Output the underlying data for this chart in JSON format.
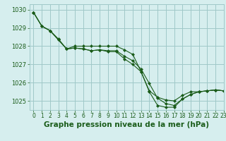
{
  "title": "Graphe pression niveau de la mer (hPa)",
  "bg_color": "#d6eeee",
  "grid_color": "#a0c8c8",
  "line_color": "#1a5c1a",
  "xlim": [
    -0.5,
    23
  ],
  "ylim": [
    1024.5,
    1030.3
  ],
  "yticks": [
    1025,
    1026,
    1027,
    1028,
    1029,
    1030
  ],
  "xticks": [
    0,
    1,
    2,
    3,
    4,
    5,
    6,
    7,
    8,
    9,
    10,
    11,
    12,
    13,
    14,
    15,
    16,
    17,
    18,
    19,
    20,
    21,
    22,
    23
  ],
  "series": [
    [
      1029.85,
      1029.1,
      1028.85,
      1028.4,
      1027.85,
      1027.9,
      1027.85,
      1027.75,
      1027.8,
      1027.75,
      1027.75,
      1027.45,
      1027.2,
      1026.75,
      1025.95,
      1025.15,
      1024.85,
      1024.75,
      1025.1,
      1025.35,
      1025.5,
      1025.55,
      1025.6,
      1025.55
    ],
    [
      1029.85,
      1029.1,
      1028.85,
      1028.35,
      1027.85,
      1028.0,
      1028.0,
      1028.0,
      1028.0,
      1028.0,
      1028.0,
      1027.8,
      1027.55,
      1026.6,
      1025.55,
      1025.2,
      1025.05,
      1025.0,
      1025.3,
      1025.5,
      1025.5,
      1025.55,
      1025.6,
      1025.55
    ],
    [
      1029.85,
      1029.1,
      1028.85,
      1028.35,
      1027.85,
      1027.9,
      1027.85,
      1027.75,
      1027.8,
      1027.7,
      1027.7,
      1027.3,
      1027.0,
      1026.6,
      1025.5,
      1024.75,
      1024.65,
      1024.65,
      1025.1,
      1025.35,
      1025.5,
      1025.55,
      1025.6,
      1025.55
    ]
  ],
  "title_fontsize": 7.5,
  "tick_fontsize": 6,
  "xtick_fontsize": 5.5
}
